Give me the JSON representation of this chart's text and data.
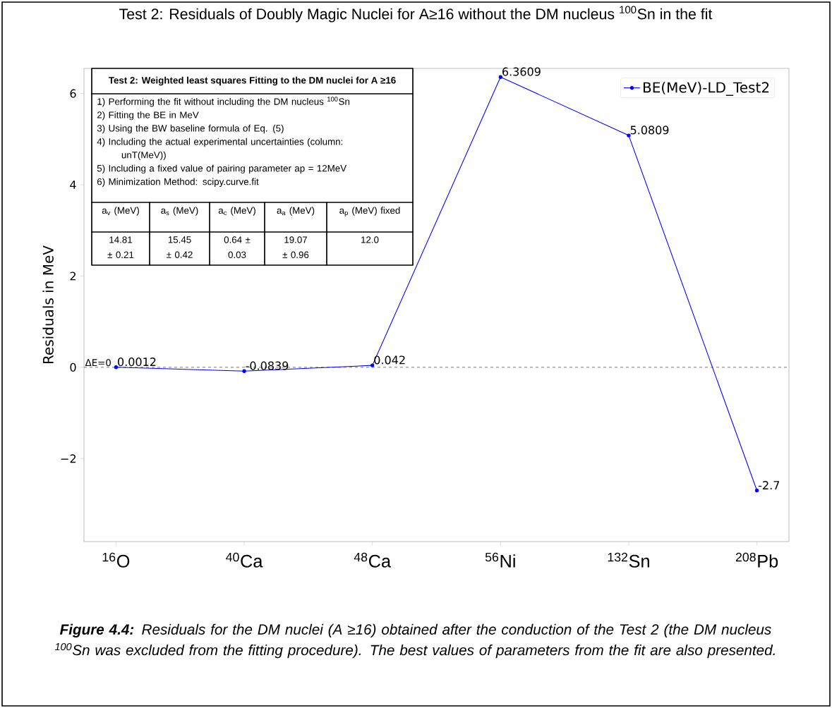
{
  "chart_data": {
    "type": "line",
    "title": "Test 2: Residuals of Doubly Magic Nuclei for A≥16 without the DM nucleus $^{100}$Sn in the fit",
    "ylabel": "Residuals in MeV",
    "categories": [
      "$^{16}$O",
      "$^{40}$Ca",
      "$^{48}$Ca",
      "$^{56}$Ni",
      "$^{132}$Sn",
      "$^{208}$Pb"
    ],
    "series": [
      {
        "name": "BE(MeV)-LD_Test2",
        "color": "#0000ff",
        "values": [
          0.0012,
          -0.0839,
          0.042,
          6.3609,
          5.0809,
          -2.7
        ]
      }
    ],
    "ylim": [
      -3.82,
      6.55
    ],
    "yticks": [
      {
        "value": -2,
        "label": "−2"
      },
      0,
      2,
      4,
      6
    ],
    "data_labels": true,
    "marker": "circle",
    "line_style": "solid",
    "legend": "top right",
    "ref_lines": [
      {
        "axis": "y",
        "value": 0,
        "label": "ΔE=0",
        "color": "#000000",
        "line_style": "dashed"
      }
    ],
    "annotations": [
      "Test 2: Weighted least squares Fitting to the DM nuclei for A ≥16",
      "1) Performing the fit without including the DM nucleus $^{100}$Sn",
      "2) Fitting the BE in MeV",
      "3) Using the BW baseline formula of Eq. (5)",
      "4) Including the actual experimental uncertainties (column: unT(MeV))",
      "5) Including a fixed value of pairing parameter ap = 12MeV",
      "6) Minimization Method: scipy.curve.fit",
      "a$_{v}$ (MeV)",
      "a$_{s}$ (MeV)",
      "a$_{c}$ (MeV)",
      "a$_{a}$ (MeV)",
      "a$_{p}$ (MeV) fixed",
      "14.81 ± 0.21",
      "15.45 ± 0.42",
      "0.64 ± 0.03",
      "19.07 ± 0.96",
      "12.0",
      "**Figure 4.4:** Residuals for the DM nuclei (A ≥16) obtained after the conduction of the Test 2 (the DM nucleus $^{100}$Sn was excluded from the fitting procedure). The best values of parameters from the fit are also presented."
    ]
  }
}
